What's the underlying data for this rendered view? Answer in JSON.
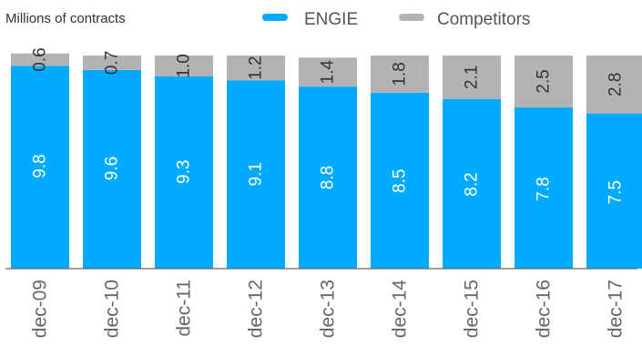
{
  "chart_data": {
    "type": "bar",
    "stacked": true,
    "ylabel": "Millions of contracts",
    "categories": [
      "dec-09",
      "dec-10",
      "dec-11",
      "dec-12",
      "dec-13",
      "dec-14",
      "dec-15",
      "dec-16",
      "dec-17"
    ],
    "series": [
      {
        "name": "ENGIE",
        "color": "#00AAFF",
        "values": [
          9.8,
          9.6,
          9.3,
          9.1,
          8.8,
          8.5,
          8.2,
          7.8,
          7.5
        ]
      },
      {
        "name": "Competitors",
        "color": "#B3B3B3",
        "values": [
          0.6,
          0.7,
          1.0,
          1.2,
          1.4,
          1.8,
          2.1,
          2.5,
          2.8
        ]
      }
    ],
    "value_labels": {
      "ENGIE": [
        "9.8",
        "9.6",
        "9.3",
        "9.1",
        "8.8",
        "8.5",
        "8.2",
        "7.8",
        "7.5"
      ],
      "Competitors": [
        "0.6",
        "0.7",
        "1.0",
        "1.2",
        "1.4",
        "1.8",
        "2.1",
        "2.5",
        "2.8"
      ]
    },
    "ylim": [
      0,
      10.3
    ],
    "legend_position": "top",
    "grid": false
  }
}
